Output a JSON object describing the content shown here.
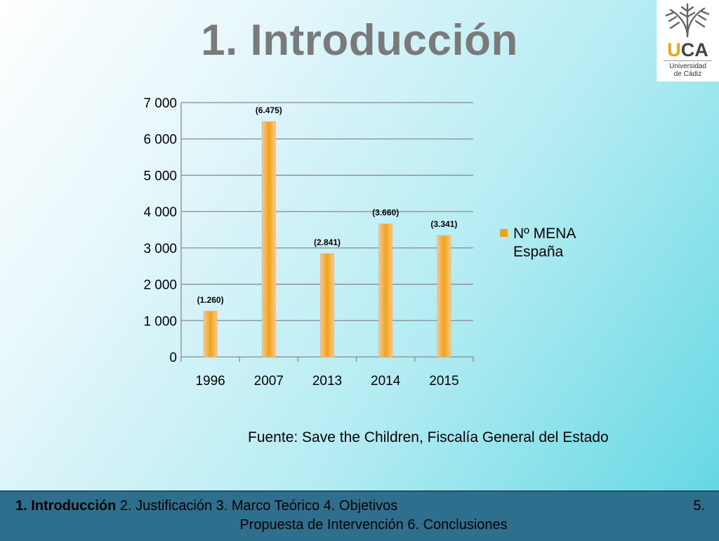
{
  "slide": {
    "title": "1. Introducción",
    "source": "Fuente: Save the Children, Fiscalía General del Estado"
  },
  "logo": {
    "letters_u": "U",
    "letters_ca": "CA",
    "line1": "Universidad",
    "line2": "de Cádiz",
    "accent": "#f0a31a"
  },
  "colors": {
    "bar": "#f0a31a",
    "bar_light": "#f9c98a",
    "footer_bg": "#2e6f8e"
  },
  "legend": {
    "series_name": "Nº MENA España"
  },
  "chart_data": {
    "type": "bar",
    "categories": [
      "1996",
      "2007",
      "2013",
      "2014",
      "2015"
    ],
    "series": [
      {
        "name": "Nº MENA España",
        "values": [
          1260,
          6475,
          2841,
          3660,
          3341
        ]
      }
    ],
    "data_labels": [
      "(1.260)",
      "(6.475)",
      "(2.841)",
      "(3.660)",
      "(3.341)"
    ],
    "y_ticks": [
      "0",
      "1 000",
      "2 000",
      "3 000",
      "4 000",
      "5 000",
      "6 000",
      "7 000"
    ],
    "ylim": [
      0,
      7000
    ],
    "grid": true,
    "legend_position": "right"
  },
  "footer": {
    "active": "1. Introducción",
    "rest_line1": " 2. Justificación 3. Marco Teórico 4. Objetivos",
    "num5": "5.",
    "line2": "Propuesta de Intervención 6. Conclusiones"
  }
}
